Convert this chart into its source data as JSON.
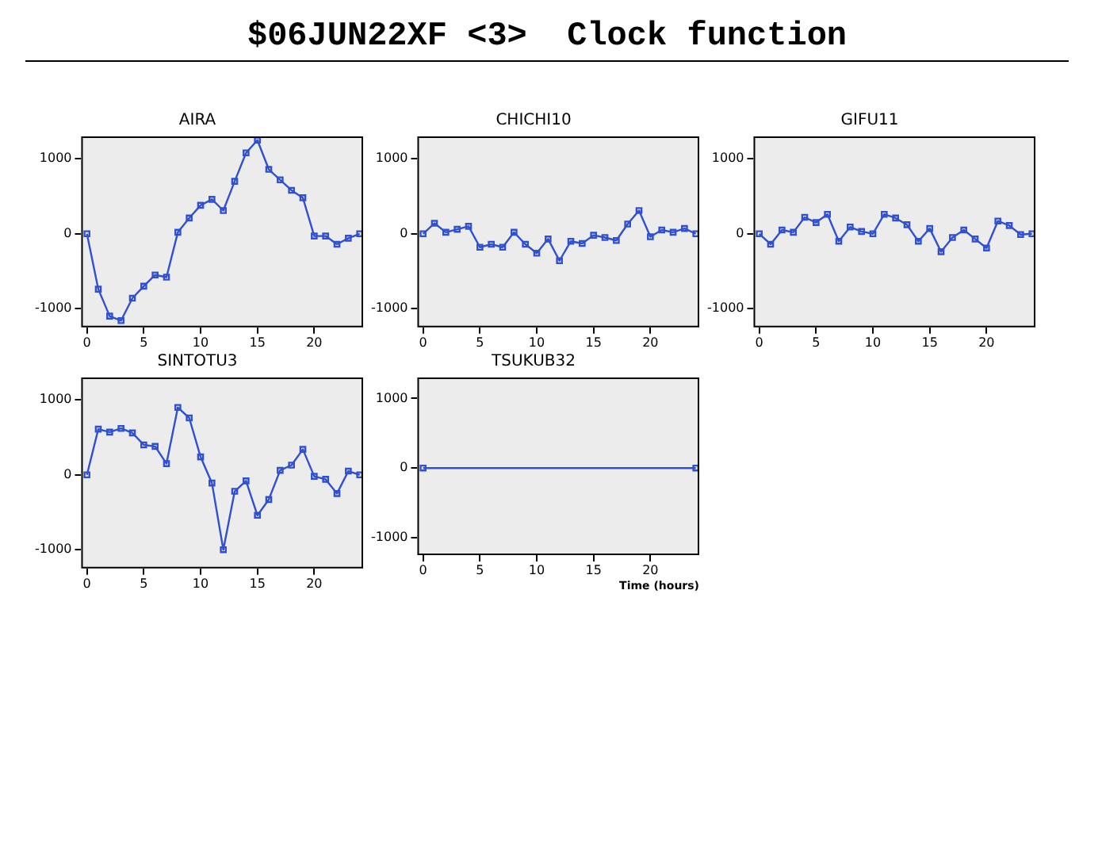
{
  "chart_data": [
    {
      "type": "line",
      "title": "AIRA",
      "annotations": [
        "$06JUN22XF <3>  Clock function"
      ],
      "x": [
        0,
        1,
        2,
        3,
        4,
        5,
        6,
        7,
        8,
        9,
        10,
        11,
        12,
        13,
        14,
        15,
        16,
        17,
        18,
        19,
        20,
        21,
        22,
        23,
        24
      ],
      "series": [
        {
          "color": "#3050d0",
          "values": [
            0,
            -740,
            -1100,
            -1160,
            -860,
            -700,
            -550,
            -580,
            20,
            210,
            380,
            460,
            310,
            700,
            1080,
            1250,
            860,
            720,
            580,
            480,
            -30,
            -30,
            -140,
            -60,
            0
          ]
        }
      ],
      "xlim": [
        -0.5,
        24.3
      ],
      "ylim": [
        -1250,
        1300
      ],
      "xticks": [
        0,
        5,
        10,
        15,
        20
      ],
      "yticks": [
        -1000,
        0,
        1000
      ],
      "marker": "square",
      "line_style": "solid"
    },
    {
      "type": "line",
      "title": "CHICHI10",
      "x": [
        0,
        1,
        2,
        3,
        4,
        5,
        6,
        7,
        8,
        9,
        10,
        11,
        12,
        13,
        14,
        15,
        16,
        17,
        18,
        19,
        20,
        21,
        22,
        23,
        24
      ],
      "series": [
        {
          "color": "#3050d0",
          "values": [
            0,
            140,
            20,
            60,
            100,
            -180,
            -140,
            -180,
            20,
            -140,
            -260,
            -70,
            -360,
            -100,
            -130,
            -20,
            -50,
            -90,
            130,
            310,
            -40,
            50,
            20,
            70,
            0
          ]
        }
      ],
      "xlim": [
        -0.5,
        24.3
      ],
      "ylim": [
        -1250,
        1300
      ],
      "xticks": [
        0,
        5,
        10,
        15,
        20
      ],
      "yticks": [
        -1000,
        0,
        1000
      ],
      "marker": "square",
      "line_style": "solid"
    },
    {
      "type": "line",
      "title": "GIFU11",
      "x": [
        0,
        1,
        2,
        3,
        4,
        5,
        6,
        7,
        8,
        9,
        10,
        11,
        12,
        13,
        14,
        15,
        16,
        17,
        18,
        19,
        20,
        21,
        22,
        23,
        24
      ],
      "series": [
        {
          "color": "#3050d0",
          "values": [
            0,
            -140,
            50,
            20,
            220,
            150,
            260,
            -100,
            90,
            30,
            0,
            260,
            210,
            120,
            -100,
            70,
            -240,
            -50,
            50,
            -70,
            -190,
            170,
            110,
            -10,
            0
          ]
        }
      ],
      "xlim": [
        -0.5,
        24.3
      ],
      "ylim": [
        -1250,
        1300
      ],
      "xticks": [
        0,
        5,
        10,
        15,
        20
      ],
      "yticks": [
        -1000,
        0,
        1000
      ],
      "marker": "square",
      "line_style": "solid"
    },
    {
      "type": "line",
      "title": "SINTOTU3",
      "x": [
        0,
        1,
        2,
        3,
        4,
        5,
        6,
        7,
        8,
        9,
        10,
        11,
        12,
        13,
        14,
        15,
        16,
        17,
        18,
        19,
        20,
        21,
        22,
        23,
        24
      ],
      "series": [
        {
          "color": "#3050d0",
          "values": [
            0,
            610,
            570,
            620,
            560,
            400,
            380,
            150,
            900,
            760,
            240,
            -110,
            -1000,
            -220,
            -80,
            -540,
            -330,
            60,
            130,
            340,
            -20,
            -60,
            -250,
            50,
            0
          ]
        }
      ],
      "xlim": [
        -0.5,
        24.3
      ],
      "ylim": [
        -1250,
        1300
      ],
      "xticks": [
        0,
        5,
        10,
        15,
        20
      ],
      "yticks": [
        -1000,
        0,
        1000
      ],
      "marker": "square",
      "line_style": "solid"
    },
    {
      "type": "line",
      "title": "TSUKUB32",
      "xlabel": "Time (hours)",
      "x": [
        0,
        24
      ],
      "series": [
        {
          "color": "#3050d0",
          "values": [
            0,
            0
          ]
        }
      ],
      "xlim": [
        -0.5,
        24.3
      ],
      "ylim": [
        -1250,
        1300
      ],
      "xticks": [
        0,
        5,
        10,
        15,
        20
      ],
      "yticks": [
        -1000,
        0,
        1000
      ],
      "marker": "square",
      "line_style": "solid"
    }
  ]
}
